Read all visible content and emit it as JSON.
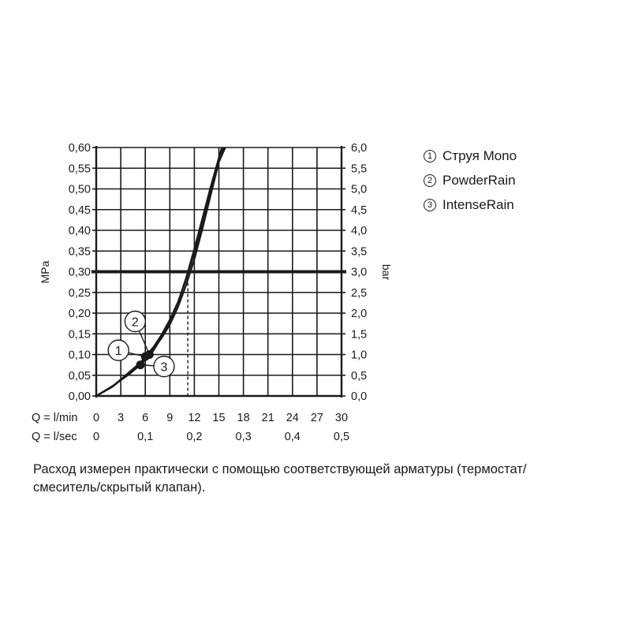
{
  "chart_data": {
    "type": "line",
    "y_left": {
      "label": "MPa",
      "ylim": [
        0,
        0.6
      ],
      "ticks": [
        "0,00",
        "0,05",
        "0,10",
        "0,15",
        "0,20",
        "0,25",
        "0,30",
        "0,35",
        "0,40",
        "0,45",
        "0,50",
        "0,55",
        "0,60"
      ]
    },
    "y_right": {
      "label": "bar",
      "ylim": [
        0,
        6
      ],
      "ticks": [
        "0,0",
        "0,5",
        "1,0",
        "1,5",
        "2,0",
        "2,5",
        "3,0",
        "3,5",
        "4,0",
        "4,5",
        "5,0",
        "5,5",
        "6,0"
      ]
    },
    "x_primary": {
      "label": "Q = l/min",
      "xlim": [
        0,
        30
      ],
      "ticks": [
        "0",
        "3",
        "6",
        "9",
        "12",
        "15",
        "18",
        "21",
        "24",
        "27",
        "30"
      ]
    },
    "x_secondary": {
      "label": "Q = l/sec",
      "xlim": [
        0,
        0.5
      ],
      "ticks": [
        {
          "value": 0,
          "label": "0"
        },
        {
          "value": 0.1,
          "label": "0,1"
        },
        {
          "value": 0.2,
          "label": "0,2"
        },
        {
          "value": 0.3,
          "label": "0,3"
        },
        {
          "value": 0.4,
          "label": "0,4"
        },
        {
          "value": 0.5,
          "label": "0,5"
        }
      ]
    },
    "grid": true,
    "reference_line": {
      "y": 0.3,
      "x": 11.2
    },
    "series": [
      {
        "name": "Струя Mono",
        "marker_label": "1",
        "marker": {
          "x": 6.0,
          "y": 0.095
        },
        "points": [
          [
            0,
            0
          ],
          [
            2,
            0.023
          ],
          [
            4,
            0.057
          ],
          [
            5.5,
            0.082
          ],
          [
            6,
            0.095
          ],
          [
            7,
            0.118
          ],
          [
            8,
            0.148
          ],
          [
            9,
            0.184
          ],
          [
            10,
            0.227
          ],
          [
            11,
            0.282
          ],
          [
            12,
            0.345
          ],
          [
            13,
            0.415
          ],
          [
            14,
            0.495
          ],
          [
            15,
            0.575
          ],
          [
            15.5,
            0.61
          ]
        ]
      },
      {
        "name": "PowderRain",
        "marker_label": "2",
        "marker": {
          "x": 6.5,
          "y": 0.1
        },
        "points": [
          [
            0,
            0
          ],
          [
            2,
            0.022
          ],
          [
            4,
            0.055
          ],
          [
            5.5,
            0.082
          ],
          [
            6.5,
            0.1
          ],
          [
            8,
            0.14
          ],
          [
            9,
            0.172
          ],
          [
            10,
            0.215
          ],
          [
            11,
            0.268
          ],
          [
            12,
            0.33
          ],
          [
            13,
            0.405
          ],
          [
            14,
            0.485
          ],
          [
            15,
            0.565
          ],
          [
            16,
            0.61
          ]
        ]
      },
      {
        "name": "IntenseRain",
        "marker_label": "3",
        "marker": {
          "x": 5.4,
          "y": 0.075
        },
        "points": [
          [
            0,
            0
          ],
          [
            2,
            0.024
          ],
          [
            4,
            0.052
          ],
          [
            5.4,
            0.075
          ],
          [
            6,
            0.087
          ],
          [
            7,
            0.11
          ],
          [
            8,
            0.142
          ],
          [
            9,
            0.18
          ],
          [
            10,
            0.226
          ],
          [
            11,
            0.285
          ],
          [
            12,
            0.355
          ],
          [
            13,
            0.43
          ],
          [
            14,
            0.505
          ],
          [
            15,
            0.575
          ],
          [
            15.8,
            0.61
          ]
        ]
      }
    ]
  },
  "legend": [
    {
      "num": "1",
      "label": "Струя Mono"
    },
    {
      "num": "2",
      "label": "PowderRain"
    },
    {
      "num": "3",
      "label": "IntenseRain"
    }
  ],
  "caption": {
    "line1": "Расход измерен практически с помощью соответствующей арматуры (термостат/",
    "line2": "смеситель/скрытый клапан)."
  }
}
